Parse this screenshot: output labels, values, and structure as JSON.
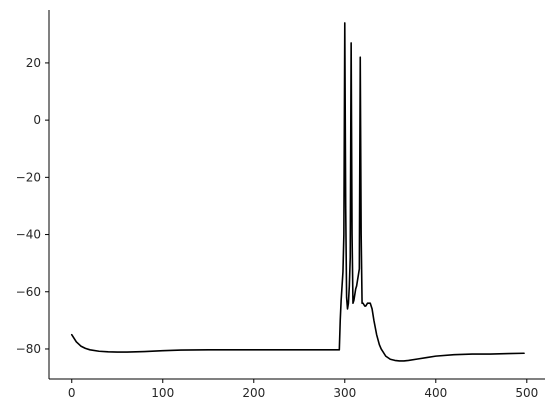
{
  "chart_data": {
    "type": "line",
    "title": "",
    "xlabel": "",
    "ylabel": "",
    "xlim": [
      -25,
      520
    ],
    "ylim": [
      -90.5,
      38.5
    ],
    "x_ticks": [
      0,
      100,
      200,
      300,
      400,
      500
    ],
    "x_tick_labels": [
      "0",
      "100",
      "200",
      "300",
      "400",
      "500"
    ],
    "y_ticks": [
      -80,
      -60,
      -40,
      -20,
      0,
      20
    ],
    "y_tick_labels": [
      "−80",
      "−60",
      "−40",
      "−20",
      "0",
      "20"
    ],
    "grid": false,
    "legend": "none",
    "spines": [
      "left",
      "bottom"
    ],
    "series": [
      {
        "color": "#000000",
        "x": [
          0,
          5,
          10,
          15,
          20,
          30,
          40,
          50,
          60,
          80,
          100,
          120,
          150,
          200,
          250,
          290,
          294,
          295,
          296,
          297,
          298,
          299,
          300,
          301,
          302,
          303,
          304,
          305,
          306,
          307,
          308,
          309,
          310,
          311,
          312,
          313,
          314,
          315,
          316,
          317,
          318,
          319,
          320,
          321,
          322,
          323,
          325,
          328,
          330,
          332,
          335,
          338,
          340,
          345,
          350,
          355,
          360,
          365,
          370,
          380,
          390,
          400,
          420,
          440,
          460,
          480,
          497
        ],
        "y": [
          -75,
          -77.5,
          -79,
          -79.8,
          -80.3,
          -80.8,
          -81,
          -81.1,
          -81.1,
          -80.9,
          -80.6,
          -80.4,
          -80.3,
          -80.3,
          -80.3,
          -80.3,
          -80.3,
          -70,
          -63,
          -58,
          -53,
          -40,
          34,
          -30,
          -62,
          -66,
          -64,
          -58,
          -48,
          27,
          -40,
          -64,
          -63,
          -61,
          -59,
          -58,
          -56,
          -54,
          -52,
          22,
          -40,
          -64,
          -64,
          -64.5,
          -65,
          -65,
          -64,
          -64,
          -66,
          -70,
          -75,
          -78.5,
          -80,
          -82.5,
          -83.6,
          -84,
          -84.2,
          -84.2,
          -84,
          -83.5,
          -83,
          -82.5,
          -82,
          -81.8,
          -81.8,
          -81.6,
          -81.5
        ]
      }
    ]
  }
}
